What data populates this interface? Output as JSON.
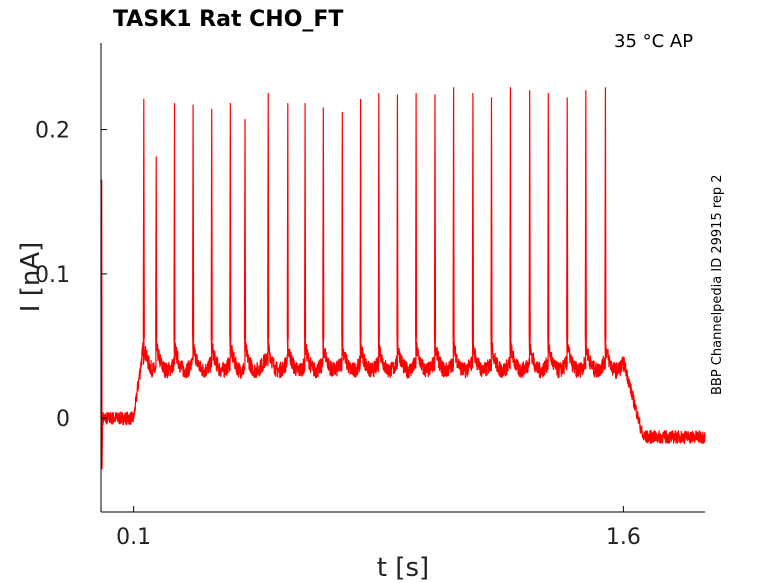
{
  "title": "TASK1  Rat  CHO_FT",
  "condition_label": "35 °C  AP",
  "source_label": "BBP Channelpedia ID 29915 rep 2",
  "colors": {
    "trace": "#ff0000",
    "axis": "#000000",
    "background": "#ffffff"
  },
  "chart_data": {
    "type": "line",
    "title": "TASK1  Rat  CHO_FT",
    "xlabel": "t [s]",
    "ylabel": "I [nA]",
    "xlim": [
      0.0,
      1.85
    ],
    "ylim": [
      -0.065,
      0.26
    ],
    "x_ticks": [
      0.1,
      1.6
    ],
    "x_tick_labels": [
      "0.1",
      "1.6"
    ],
    "y_ticks": [
      0,
      0.1,
      0.2
    ],
    "y_tick_labels": [
      "0",
      "0.1",
      "0.2"
    ],
    "grid": false,
    "legend": "none",
    "series": [
      {
        "color": "#ff0000",
        "baseline_before": 0.0,
        "step_on": 0.11,
        "step_off": 1.6,
        "plateau_level": 0.04,
        "baseline_after": -0.013,
        "initial_transient": {
          "x": 0.002,
          "peak": 0.165,
          "trough": -0.035
        },
        "spikes": {
          "x": [
            0.131,
            0.169,
            0.225,
            0.282,
            0.339,
            0.396,
            0.441,
            0.512,
            0.572,
            0.625,
            0.681,
            0.739,
            0.795,
            0.851,
            0.908,
            0.965,
            1.023,
            1.08,
            1.139,
            1.196,
            1.254,
            1.313,
            1.37,
            1.428,
            1.485,
            1.545
          ],
          "peaks": [
            0.221,
            0.181,
            0.218,
            0.217,
            0.214,
            0.218,
            0.207,
            0.225,
            0.218,
            0.218,
            0.215,
            0.212,
            0.221,
            0.225,
            0.224,
            0.225,
            0.224,
            0.229,
            0.225,
            0.222,
            0.229,
            0.227,
            0.225,
            0.222,
            0.227,
            0.229
          ]
        }
      }
    ]
  }
}
